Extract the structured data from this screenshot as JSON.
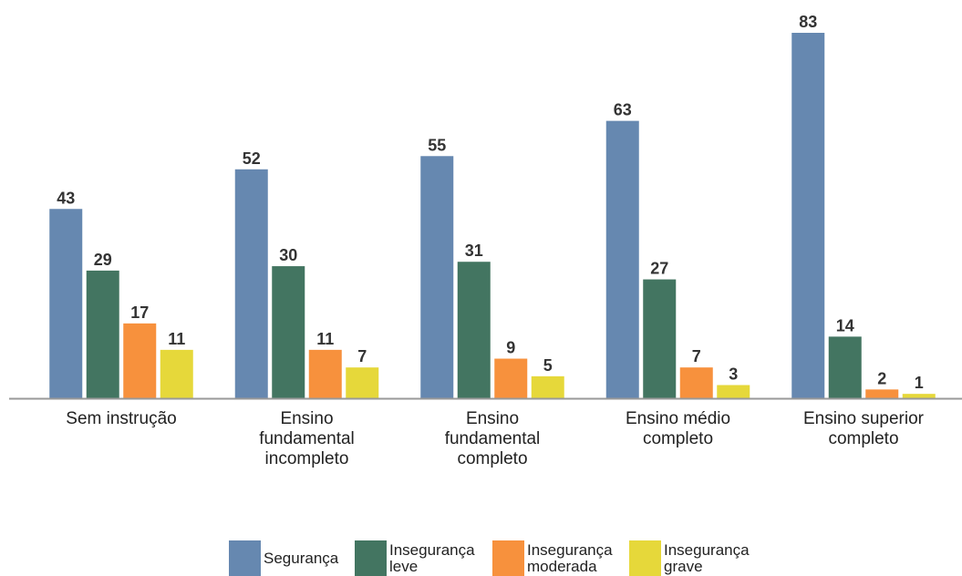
{
  "chart_data": {
    "type": "bar",
    "categories": [
      "Sem instrução",
      "Ensino fundamental incompleto",
      "Ensino fundamental completo",
      "Ensino médio completo",
      "Ensino superior completo"
    ],
    "series": [
      {
        "name": "Segurança",
        "color": "#6688b0",
        "values": [
          43,
          52,
          55,
          63,
          83
        ]
      },
      {
        "name": "Insegurança leve",
        "color": "#437561",
        "values": [
          29,
          30,
          31,
          27,
          14
        ]
      },
      {
        "name": "Insegurança moderada",
        "color": "#f7913d",
        "values": [
          17,
          11,
          9,
          7,
          2
        ]
      },
      {
        "name": "Insegurança grave",
        "color": "#e6d83a",
        "values": [
          11,
          7,
          5,
          3,
          1
        ]
      }
    ],
    "legend": "bottom"
  }
}
